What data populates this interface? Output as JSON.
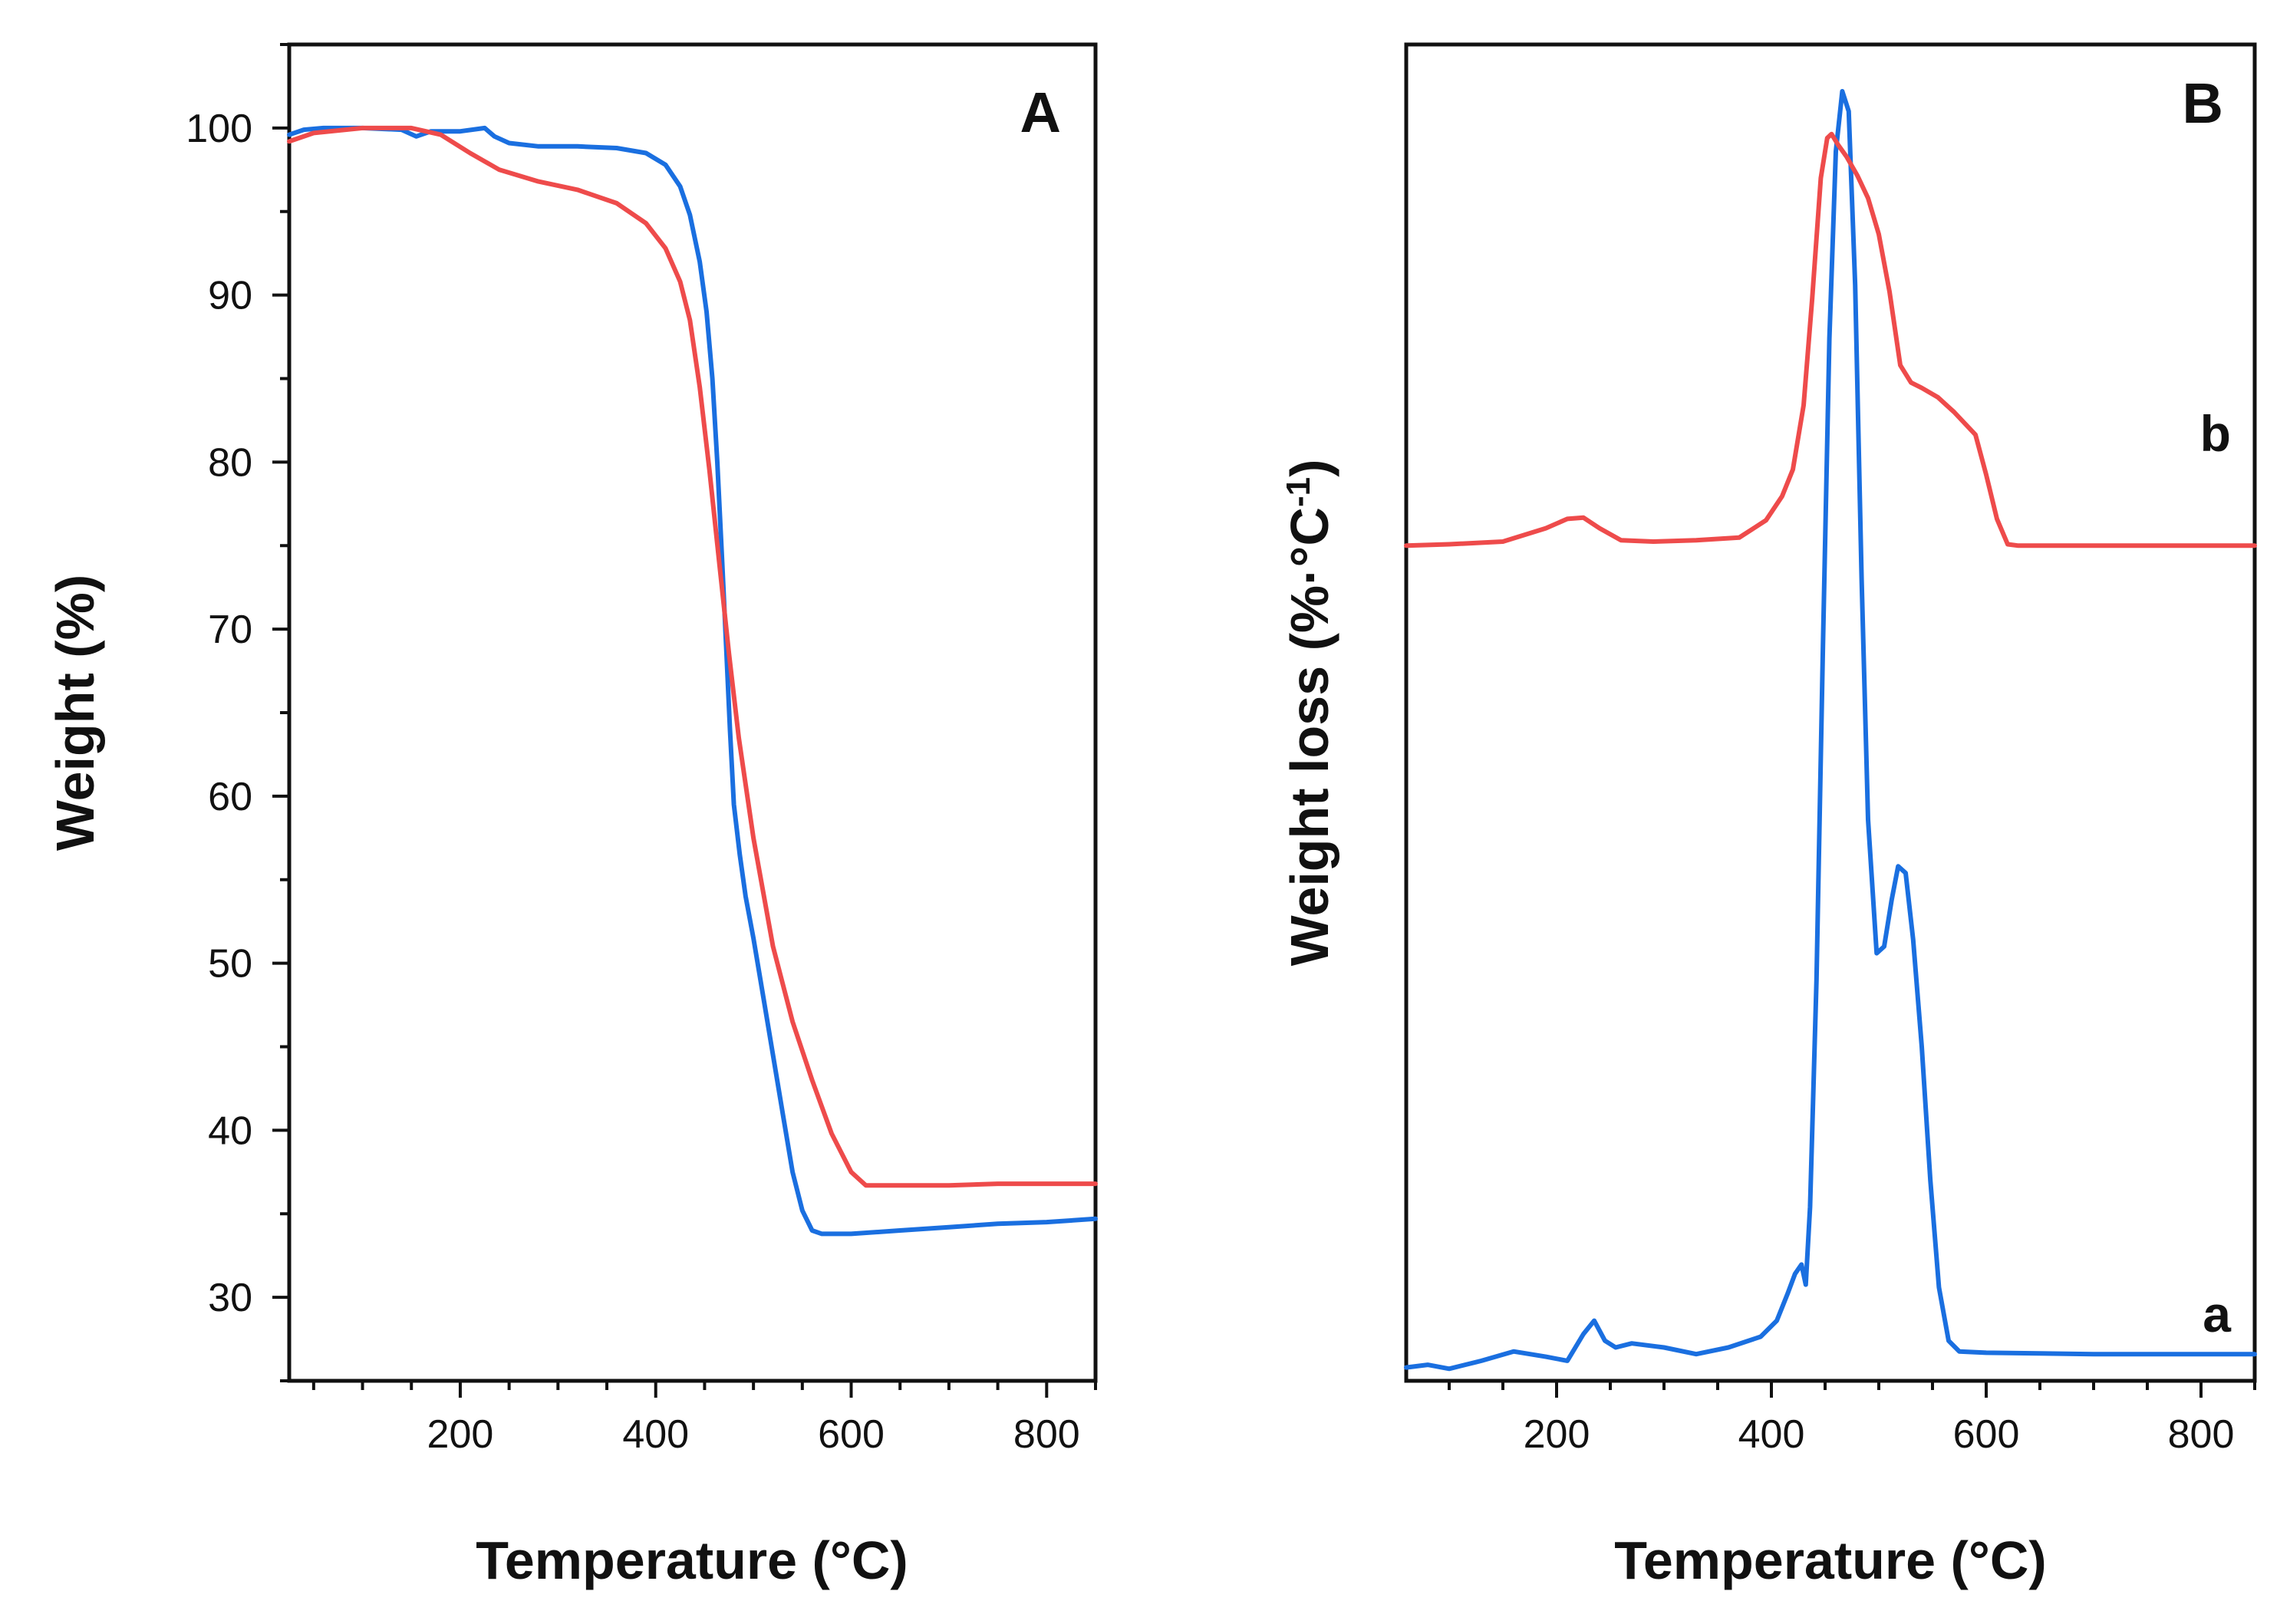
{
  "chart_data": [
    {
      "type": "line",
      "panel": "A",
      "title": "",
      "xlabel": "Temperature (°C)",
      "ylabel": "Weight (%)",
      "xlim": [
        25,
        850
      ],
      "ylim": [
        25,
        105
      ],
      "xticks": [
        200,
        400,
        600,
        800
      ],
      "yticks": [
        30,
        40,
        50,
        60,
        70,
        80,
        90,
        100
      ],
      "x_minor_step": 50,
      "y_minor_step": 5,
      "grid": false,
      "legend": "none",
      "series": [
        {
          "name": "blue",
          "color": "#1a6fe0",
          "x": [
            25,
            40,
            60,
            100,
            140,
            155,
            170,
            200,
            225,
            235,
            250,
            280,
            320,
            360,
            390,
            410,
            425,
            435,
            445,
            452,
            458,
            463,
            468,
            472,
            476,
            480,
            486,
            492,
            500,
            510,
            520,
            530,
            540,
            550,
            560,
            570,
            580,
            600,
            650,
            700,
            750,
            800,
            850
          ],
          "y": [
            99.6,
            99.9,
            100.0,
            100.0,
            99.9,
            99.5,
            99.8,
            99.8,
            100.0,
            99.5,
            99.1,
            98.9,
            98.9,
            98.8,
            98.5,
            97.8,
            96.5,
            94.8,
            92.0,
            89.0,
            85.0,
            80.0,
            74.0,
            69.0,
            64.0,
            59.5,
            56.5,
            54.0,
            51.5,
            48.0,
            44.5,
            41.0,
            37.5,
            35.2,
            34.0,
            33.8,
            33.8,
            33.8,
            34.0,
            34.2,
            34.4,
            34.5,
            34.7
          ]
        },
        {
          "name": "red",
          "color": "#ee4b4b",
          "x": [
            25,
            50,
            100,
            150,
            180,
            210,
            240,
            280,
            320,
            360,
            390,
            410,
            425,
            435,
            445,
            455,
            465,
            475,
            485,
            500,
            520,
            540,
            560,
            580,
            600,
            615,
            650,
            700,
            750,
            800,
            850
          ],
          "y": [
            99.2,
            99.7,
            100.0,
            100.0,
            99.6,
            98.5,
            97.5,
            96.8,
            96.3,
            95.5,
            94.3,
            92.8,
            90.8,
            88.5,
            84.5,
            79.5,
            74.0,
            68.5,
            63.5,
            57.5,
            51.0,
            46.5,
            43.0,
            39.8,
            37.5,
            36.7,
            36.7,
            36.7,
            36.8,
            36.8,
            36.8
          ]
        }
      ],
      "annotations": [
        {
          "text": "A",
          "position": "top-right"
        }
      ]
    },
    {
      "type": "line",
      "panel": "B",
      "title": "",
      "xlabel": "Temperature (°C)",
      "ylabel": "Weight loss (%·°C",
      "ylabel_superscript": "-1",
      "ylabel_suffix": ")",
      "xlim": [
        60,
        850
      ],
      "ylim": [
        0,
        100
      ],
      "y_units": "arbitrary (offset, no tick labels)",
      "xticks": [
        200,
        400,
        600,
        800
      ],
      "x_minor_step": 50,
      "grid": false,
      "legend": "none",
      "series": [
        {
          "name": "a",
          "label": "a",
          "color": "#1a6fe0",
          "x": [
            60,
            80,
            100,
            130,
            160,
            190,
            210,
            225,
            235,
            245,
            255,
            270,
            300,
            330,
            360,
            390,
            405,
            415,
            422,
            428,
            432,
            436,
            442,
            448,
            454,
            460,
            466,
            472,
            478,
            484,
            490,
            498,
            505,
            512,
            518,
            525,
            532,
            540,
            548,
            556,
            565,
            575,
            600,
            700,
            850
          ],
          "y": [
            1.0,
            1.2,
            0.9,
            1.5,
            2.2,
            1.8,
            1.5,
            3.5,
            4.5,
            3.0,
            2.5,
            2.8,
            2.5,
            2.0,
            2.5,
            3.3,
            4.5,
            6.5,
            8.0,
            8.7,
            7.2,
            13.0,
            30.0,
            55.0,
            78.0,
            92.0,
            96.5,
            95.0,
            82.0,
            60.0,
            42.0,
            32.0,
            32.5,
            36.0,
            38.5,
            38.0,
            33.0,
            25.0,
            15.0,
            7.0,
            3.0,
            2.2,
            2.1,
            2.0,
            2.0
          ]
        },
        {
          "name": "b",
          "label": "b",
          "color": "#ee4b4b",
          "x": [
            60,
            100,
            150,
            190,
            210,
            225,
            240,
            260,
            290,
            330,
            370,
            395,
            410,
            420,
            430,
            438,
            446,
            452,
            456,
            462,
            470,
            480,
            490,
            500,
            510,
            520,
            530,
            540,
            555,
            570,
            590,
            600,
            610,
            620,
            630,
            700,
            850
          ],
          "y": [
            62.5,
            62.6,
            62.8,
            63.8,
            64.5,
            64.6,
            63.8,
            62.9,
            62.8,
            62.9,
            63.1,
            64.4,
            66.2,
            68.2,
            73.0,
            81.0,
            90.0,
            93.0,
            93.3,
            92.5,
            91.6,
            90.2,
            88.5,
            85.8,
            81.5,
            76.0,
            74.7,
            74.3,
            73.6,
            72.5,
            70.8,
            67.8,
            64.5,
            62.6,
            62.5,
            62.5,
            62.5
          ]
        }
      ],
      "annotations": [
        {
          "text": "B",
          "position": "top-right"
        }
      ]
    }
  ]
}
